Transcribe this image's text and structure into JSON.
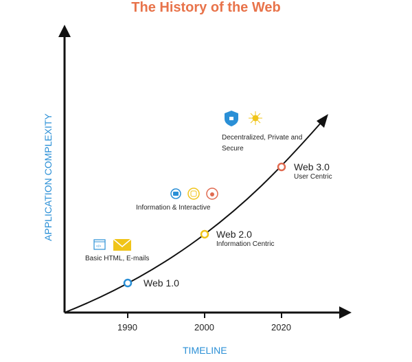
{
  "title": "The History of the Web",
  "y_axis_label": "APPLICATION COMPLEXITY",
  "x_axis_label": "TIMELINE",
  "ticks": [
    "1990",
    "2000",
    "2020"
  ],
  "milestones": [
    {
      "name": "Web 1.0",
      "subtitle": "",
      "year": "1990",
      "color": "#2a8fd6",
      "description": "Basic HTML, E-mails",
      "icons": [
        "html-window-icon",
        "email-icon"
      ]
    },
    {
      "name": "Web 2.0",
      "subtitle": "Information Centric",
      "year": "2000",
      "color": "#f0c419",
      "description": "Information & Interactive",
      "icons": [
        "youtube-icon",
        "instagram-icon",
        "twitter-icon"
      ]
    },
    {
      "name": "Web 3.0",
      "subtitle": "User Centric",
      "year": "2020",
      "color": "#e06a50",
      "description": "Decentralized, Private and Secure",
      "icons": [
        "shield-lock-icon",
        "blockchain-icon"
      ]
    }
  ]
}
